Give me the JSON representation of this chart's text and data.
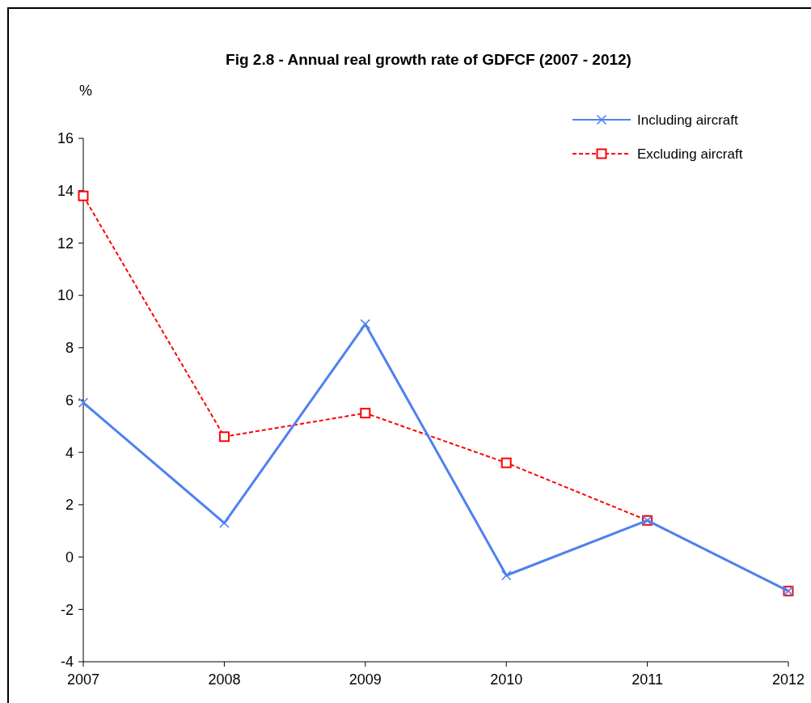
{
  "chart_data": {
    "type": "line",
    "title": "Fig 2.8 - Annual real growth rate of GDFCF (2007 - 2012)",
    "ylabel": "%",
    "x": [
      2007,
      2008,
      2009,
      2010,
      2011,
      2012
    ],
    "xlim": [
      2007,
      2012
    ],
    "xticks": [
      2007,
      2008,
      2009,
      2010,
      2011,
      2012
    ],
    "ylim": [
      -4,
      16
    ],
    "yticks": [
      -4,
      -2,
      0,
      2,
      4,
      6,
      8,
      10,
      12,
      14,
      16
    ],
    "grid": false,
    "legend": "top right",
    "series": [
      {
        "name": "Including aircraft",
        "color": "#4f81f0",
        "marker": "cross",
        "line_style": "solid",
        "values": [
          5.9,
          1.3,
          8.9,
          -0.7,
          1.4,
          -1.3
        ]
      },
      {
        "name": "Excluding aircraft",
        "color": "#ff0000",
        "marker": "square",
        "line_style": "dashed",
        "values": [
          13.8,
          4.6,
          5.5,
          3.6,
          1.4,
          -1.3
        ]
      }
    ]
  }
}
